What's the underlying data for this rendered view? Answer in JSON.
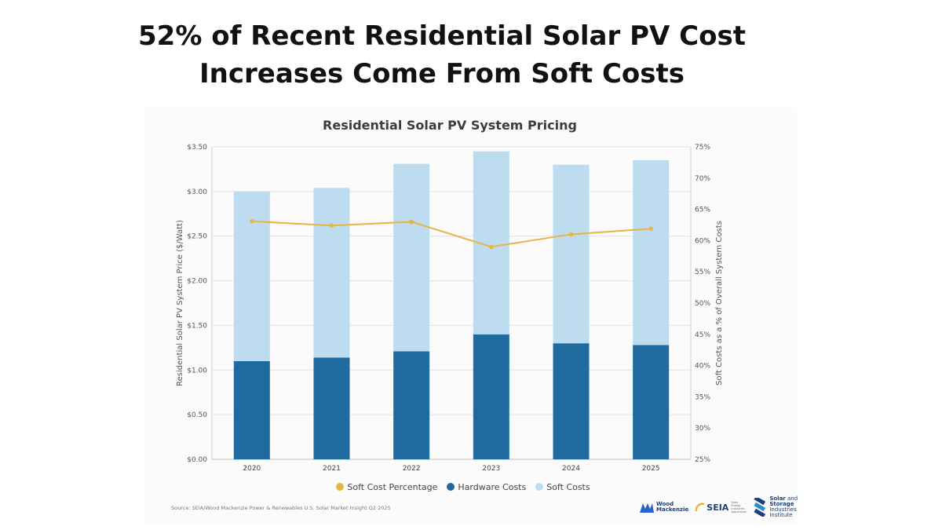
{
  "headline": {
    "line1": "52% of Recent Residential Solar PV Cost",
    "line2": "Increases Come From Soft Costs"
  },
  "chart_data": {
    "type": "bar",
    "stacked": true,
    "title": "Residential Solar PV System Pricing",
    "xlabel": "",
    "ylabel": "Residential Solar PV System Price ($/Watt)",
    "y2label": "Soft Costs as a % of Overall System Costs",
    "categories": [
      "2020",
      "2021",
      "2022",
      "2023",
      "2024",
      "2025"
    ],
    "ylim": [
      0,
      3.5
    ],
    "y2lim": [
      25,
      75
    ],
    "y_ticks": [
      "$0.00",
      "$0.50",
      "$1.00",
      "$1.50",
      "$2.00",
      "$2.50",
      "$3.00",
      "$3.50"
    ],
    "y2_ticks": [
      "25%",
      "30%",
      "35%",
      "40%",
      "45%",
      "50%",
      "55%",
      "60%",
      "65%",
      "70%",
      "75%"
    ],
    "series": [
      {
        "name": "Hardware Costs",
        "kind": "bar",
        "axis": "left",
        "color": "#1f6b9f",
        "values": [
          1.1,
          1.14,
          1.21,
          1.4,
          1.3,
          1.28
        ]
      },
      {
        "name": "Soft Costs",
        "kind": "bar",
        "axis": "left",
        "color": "#bddcf0",
        "values": [
          1.9,
          1.9,
          2.1,
          2.05,
          2.0,
          2.07
        ]
      },
      {
        "name": "Soft Cost Percentage",
        "kind": "line",
        "axis": "right",
        "color": "#e6b545",
        "values": [
          63.1,
          62.4,
          63.0,
          59.0,
          61.0,
          61.9
        ]
      }
    ],
    "legend_position": "bottom",
    "grid": true
  },
  "source": "Source: SEIA/Wood Mackenzie Power & Renewables U.S. Solar Market Insight Q2 2025",
  "logos": {
    "woodmac": [
      "Wood",
      "Mackenzie"
    ],
    "seia": "SEIA",
    "seia_sub": "Solar Energy Industries Association",
    "ssi": [
      "Solar",
      "and",
      "Storage",
      "Industries",
      "Institute"
    ]
  }
}
